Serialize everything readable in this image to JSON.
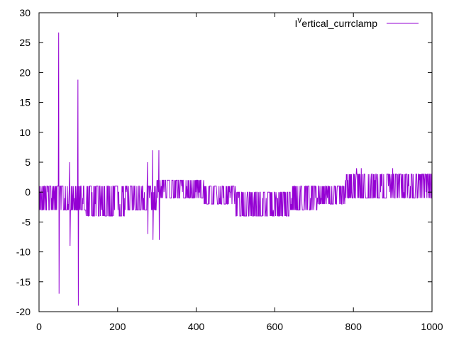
{
  "chart_data": {
    "type": "line",
    "title": "",
    "xlabel": "",
    "ylabel": "",
    "xlim": [
      0,
      1000
    ],
    "ylim": [
      -20,
      30
    ],
    "xticks": [
      0,
      200,
      400,
      600,
      800,
      1000
    ],
    "yticks": [
      -20,
      -15,
      -10,
      -5,
      0,
      5,
      10,
      15,
      20,
      25,
      30
    ],
    "grid": false,
    "legend": {
      "position": "top-right"
    },
    "series": [
      {
        "name": "I^vertical_currclamp",
        "name_base": "I",
        "name_sup": "v",
        "name_rest": "ertical_currclamp",
        "color": "#9400d3",
        "style": "dense-oscillation",
        "segments": [
          {
            "x_start": 0,
            "x_end": 120,
            "low": -3,
            "high": 1
          },
          {
            "x_start": 120,
            "x_end": 220,
            "low": -4,
            "high": 1
          },
          {
            "x_start": 220,
            "x_end": 300,
            "low": -3,
            "high": 1
          },
          {
            "x_start": 300,
            "x_end": 420,
            "low": -1,
            "high": 2
          },
          {
            "x_start": 420,
            "x_end": 500,
            "low": -2,
            "high": 1
          },
          {
            "x_start": 500,
            "x_end": 640,
            "low": -4,
            "high": 0
          },
          {
            "x_start": 640,
            "x_end": 710,
            "low": -3,
            "high": 1
          },
          {
            "x_start": 710,
            "x_end": 780,
            "low": -2,
            "high": 1
          },
          {
            "x_start": 780,
            "x_end": 1000,
            "low": -1,
            "high": 3
          }
        ],
        "spikes": [
          {
            "x": 50,
            "y": 26.7
          },
          {
            "x": 51,
            "y": -17
          },
          {
            "x": 78,
            "y": 5
          },
          {
            "x": 79,
            "y": -9
          },
          {
            "x": 95,
            "y": -3
          },
          {
            "x": 99,
            "y": 18.8
          },
          {
            "x": 100,
            "y": -19
          },
          {
            "x": 276,
            "y": 5
          },
          {
            "x": 277,
            "y": -7
          },
          {
            "x": 289,
            "y": 7
          },
          {
            "x": 290,
            "y": -8
          },
          {
            "x": 305,
            "y": 7
          },
          {
            "x": 306,
            "y": -8
          },
          {
            "x": 808,
            "y": 4
          },
          {
            "x": 820,
            "y": 4
          },
          {
            "x": 900,
            "y": 4
          }
        ]
      }
    ]
  }
}
